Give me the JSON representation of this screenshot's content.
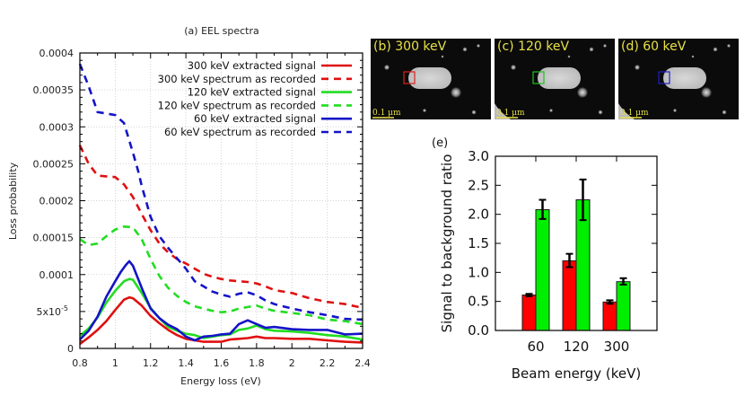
{
  "chart_data": [
    {
      "type": "line",
      "title": "(a) EEL spectra",
      "xlabel": "Energy loss (eV)",
      "ylabel": "Loss probability",
      "xlim": [
        0.8,
        2.4
      ],
      "ylim": [
        0,
        0.0004
      ],
      "grid": true,
      "legend_position": "top-right",
      "xticks": [
        "0.8",
        "1",
        "1.2",
        "1.4",
        "1.6",
        "1.8",
        "2",
        "2.2",
        "2.4"
      ],
      "xtick_values": [
        0.8,
        1.0,
        1.2,
        1.4,
        1.6,
        1.8,
        2.0,
        2.2,
        2.4
      ],
      "yticks": [
        "0",
        "5x10",
        "0.0001",
        "0.00015",
        "0.0002",
        "0.00025",
        "0.0003",
        "0.00035",
        "0.0004"
      ],
      "ytick_values": [
        0,
        5e-05,
        0.0001,
        0.00015,
        0.0002,
        0.00025,
        0.0003,
        0.00035,
        0.0004
      ],
      "ytick_superscript_5e5": "-5",
      "series": [
        {
          "name": "300 keV extracted signal",
          "color": "#e01010",
          "style": "solid",
          "x": [
            0.8,
            0.85,
            0.9,
            0.95,
            1.0,
            1.05,
            1.08,
            1.1,
            1.15,
            1.2,
            1.25,
            1.3,
            1.35,
            1.4,
            1.45,
            1.5,
            1.55,
            1.6,
            1.65,
            1.7,
            1.75,
            1.8,
            1.85,
            1.9,
            2.0,
            2.1,
            2.2,
            2.3,
            2.4
          ],
          "y": [
            6e-06,
            1.5e-05,
            2.5e-05,
            3.7e-05,
            5.2e-05,
            6.6e-05,
            6.9e-05,
            6.8e-05,
            5.8e-05,
            4.4e-05,
            3.4e-05,
            2.5e-05,
            1.8e-05,
            1.3e-05,
            1.1e-05,
            9e-06,
            9e-06,
            9e-06,
            1.2e-05,
            1.3e-05,
            1.4e-05,
            1.6e-05,
            1.4e-05,
            1.4e-05,
            1.3e-05,
            1.3e-05,
            1.1e-05,
            9e-06,
            8e-06
          ]
        },
        {
          "name": "300 keV spectrum as recorded",
          "color": "#e01010",
          "style": "dashed",
          "x": [
            0.8,
            0.85,
            0.9,
            0.95,
            1.0,
            1.05,
            1.1,
            1.15,
            1.2,
            1.25,
            1.3,
            1.35,
            1.4,
            1.45,
            1.5,
            1.55,
            1.6,
            1.65,
            1.7,
            1.75,
            1.8,
            1.85,
            1.9,
            2.0,
            2.1,
            2.2,
            2.3,
            2.4
          ],
          "y": [
            0.000275,
            0.00025,
            0.000234,
            0.000233,
            0.000232,
            0.000222,
            0.000205,
            0.000182,
            0.00016,
            0.000142,
            0.00013,
            0.000121,
            0.000115,
            0.000108,
            0.000101,
            9.7e-05,
            9.4e-05,
            9.2e-05,
            9.1e-05,
            9e-05,
            8.8e-05,
            8.4e-05,
            7.9e-05,
            7.5e-05,
            6.8e-05,
            6.3e-05,
            6e-05,
            5.5e-05
          ]
        },
        {
          "name": "120 keV extracted signal",
          "color": "#22dd22",
          "style": "solid",
          "x": [
            0.8,
            0.85,
            0.9,
            0.95,
            1.0,
            1.05,
            1.08,
            1.1,
            1.15,
            1.2,
            1.25,
            1.3,
            1.35,
            1.4,
            1.45,
            1.5,
            1.55,
            1.6,
            1.65,
            1.7,
            1.75,
            1.8,
            1.85,
            1.9,
            2.0,
            2.1,
            2.2,
            2.3,
            2.4
          ],
          "y": [
            1.7e-05,
            2.7e-05,
            4.2e-05,
            6.2e-05,
            7.8e-05,
            9.1e-05,
            9.4e-05,
            9.3e-05,
            7.5e-05,
            5.5e-05,
            4.1e-05,
            2.9e-05,
            2.4e-05,
            2e-05,
            1.8e-05,
            1.4e-05,
            1.6e-05,
            1.8e-05,
            1.9e-05,
            2.5e-05,
            2.7e-05,
            3.1e-05,
            2.6e-05,
            2.4e-05,
            2.3e-05,
            2.1e-05,
            1.8e-05,
            1.6e-05,
            1.2e-05
          ]
        },
        {
          "name": "120 keV spectrum as recorded",
          "color": "#22dd22",
          "style": "dashed",
          "x": [
            0.8,
            0.85,
            0.9,
            0.95,
            1.0,
            1.05,
            1.1,
            1.15,
            1.2,
            1.25,
            1.3,
            1.35,
            1.4,
            1.45,
            1.5,
            1.55,
            1.6,
            1.65,
            1.7,
            1.75,
            1.8,
            1.85,
            1.9,
            2.0,
            2.1,
            2.2,
            2.3,
            2.4
          ],
          "y": [
            0.000148,
            0.00014,
            0.000142,
            0.000152,
            0.000161,
            0.000165,
            0.000164,
            0.000148,
            0.000121,
            9.8e-05,
            8.2e-05,
            7.1e-05,
            6.3e-05,
            5.7e-05,
            5.4e-05,
            5.1e-05,
            4.9e-05,
            5e-05,
            5.4e-05,
            5.6e-05,
            5.8e-05,
            5.4e-05,
            5.1e-05,
            4.8e-05,
            4.5e-05,
            3.9e-05,
            3.7e-05,
            3.3e-05
          ]
        },
        {
          "name": "60 keV extracted signal",
          "color": "#1414c8",
          "style": "solid",
          "x": [
            0.8,
            0.85,
            0.9,
            0.95,
            1.0,
            1.03,
            1.06,
            1.08,
            1.1,
            1.15,
            1.2,
            1.25,
            1.3,
            1.35,
            1.4,
            1.45,
            1.5,
            1.55,
            1.6,
            1.65,
            1.7,
            1.75,
            1.8,
            1.85,
            1.9,
            2.0,
            2.1,
            2.2,
            2.3,
            2.4
          ],
          "y": [
            1.2e-05,
            2.4e-05,
            4.3e-05,
            7e-05,
            9.1e-05,
            0.000103,
            0.000113,
            0.000118,
            0.000112,
            8.2e-05,
            5.4e-05,
            4.1e-05,
            3.2e-05,
            2.6e-05,
            1.6e-05,
            1.1e-05,
            1.6e-05,
            1.7e-05,
            1.9e-05,
            2e-05,
            3.3e-05,
            3.8e-05,
            3.3e-05,
            2.8e-05,
            2.9e-05,
            2.6e-05,
            2.5e-05,
            2.5e-05,
            1.9e-05,
            2e-05
          ]
        },
        {
          "name": "60 keV spectrum as recorded",
          "color": "#1414c8",
          "style": "dashed",
          "x": [
            0.8,
            0.85,
            0.9,
            0.95,
            1.0,
            1.05,
            1.1,
            1.13,
            1.15,
            1.2,
            1.25,
            1.3,
            1.35,
            1.4,
            1.45,
            1.5,
            1.55,
            1.6,
            1.65,
            1.7,
            1.75,
            1.8,
            1.85,
            1.9,
            2.0,
            2.1,
            2.2,
            2.3,
            2.4
          ],
          "y": [
            0.000385,
            0.000355,
            0.00032,
            0.000318,
            0.000316,
            0.000305,
            0.000265,
            0.00024,
            0.00022,
            0.000178,
            0.000152,
            0.000136,
            0.000122,
            0.000108,
            9.1e-05,
            8.4e-05,
            7.7e-05,
            7.3e-05,
            7e-05,
            7.4e-05,
            7.6e-05,
            7.2e-05,
            6.5e-05,
            6e-05,
            5.4e-05,
            4.9e-05,
            4.5e-05,
            4e-05,
            3.9e-05
          ]
        }
      ]
    },
    {
      "type": "bar",
      "title": "(e)",
      "xlabel": "Beam energy (keV)",
      "ylabel": "Signal to background ratio",
      "categories": [
        "60",
        "120",
        "300"
      ],
      "ylim": [
        0,
        3.0
      ],
      "yticks": [
        "0.0",
        "0.5",
        "1.0",
        "1.5",
        "2.0",
        "2.5",
        "3.0"
      ],
      "ytick_values": [
        0,
        0.5,
        1.0,
        1.5,
        2.0,
        2.5,
        3.0
      ],
      "grid": false,
      "series": [
        {
          "name": "red",
          "color": "#ff0000",
          "values": [
            0.61,
            1.2,
            0.49
          ],
          "err_low": [
            0.59,
            1.09,
            0.46
          ],
          "err_high": [
            0.63,
            1.32,
            0.52
          ]
        },
        {
          "name": "green",
          "color": "#00ee00",
          "values": [
            2.08,
            2.25,
            0.84
          ],
          "err_low": [
            1.92,
            1.9,
            0.79
          ],
          "err_high": [
            2.25,
            2.6,
            0.9
          ]
        }
      ]
    }
  ],
  "images": [
    {
      "label": "(b) 300 keV",
      "box_color": "#e02020",
      "scale_label": "0.1 μm"
    },
    {
      "label": "(c) 120 keV",
      "box_color": "#20c020",
      "scale_label": "0.1 μm"
    },
    {
      "label": "(d) 60 keV",
      "box_color": "#2020c0",
      "scale_label": "0.1 μm"
    }
  ]
}
